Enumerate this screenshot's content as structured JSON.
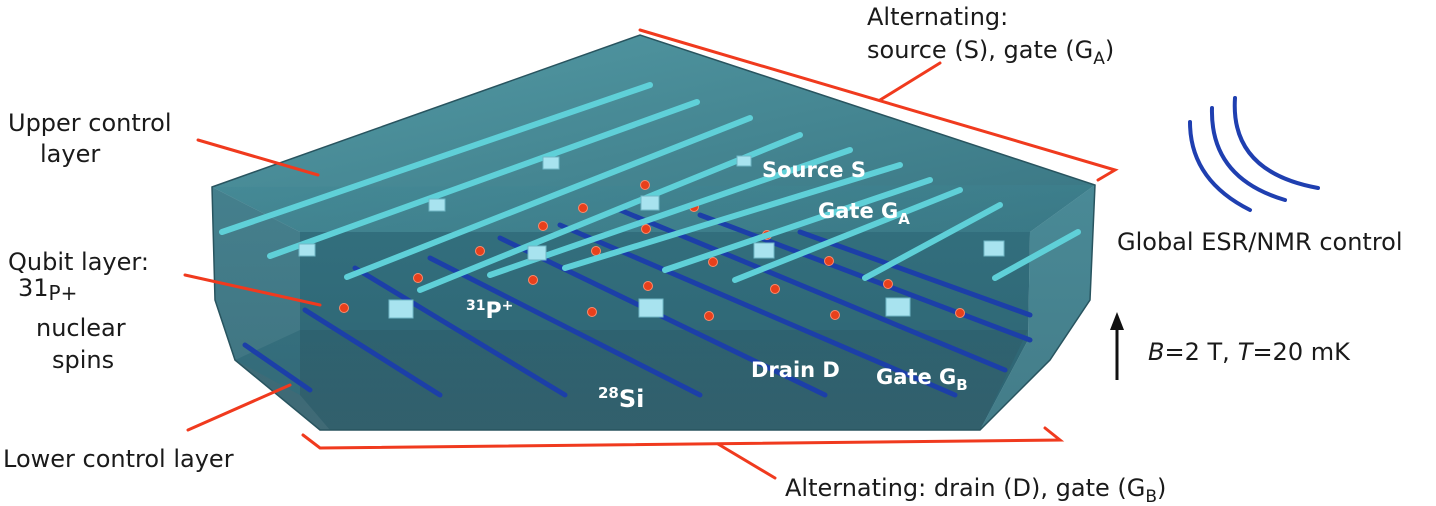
{
  "labels": {
    "upper_control_line1": "Upper control",
    "upper_control_line2": "layer",
    "qubit_line1": "Qubit layer:",
    "qubit_line2_num": "31",
    "qubit_line2_sym": "P+",
    "qubit_line3": "nuclear",
    "qubit_line4": "spins",
    "lower_control": "Lower control layer",
    "alt_top_line1": "Alternating:",
    "alt_top_line2_pre": "source (S), gate (G",
    "alt_top_line2_sub": "A",
    "alt_top_line2_post": ")",
    "alt_bottom_pre": "Alternating: drain (D), gate (G",
    "alt_bottom_sub": "B",
    "alt_bottom_post": ")",
    "global_control": "Global ESR/NMR control",
    "field_B": "B",
    "field_B_val": "=2 T,",
    "field_T": "T",
    "field_T_val": "=20 mK"
  },
  "inner_labels": {
    "source": "Source S",
    "gate_a_pre": "Gate G",
    "gate_a_sub": "A",
    "p_num": "31",
    "p_sym": "P",
    "p_charge": "+",
    "drain": "Drain D",
    "gate_b_pre": "Gate G",
    "gate_b_sub": "B",
    "si_num": "28",
    "si_sym": "Si"
  },
  "colors": {
    "block_face": "#2f6f7d",
    "block_top": "#3f8a96",
    "upper_wire": "#5fd0d8",
    "lower_wire": "#1c3fa8",
    "donor": "#e8401c",
    "leader": "#f03a1e",
    "wave": "#1f3fb0"
  }
}
